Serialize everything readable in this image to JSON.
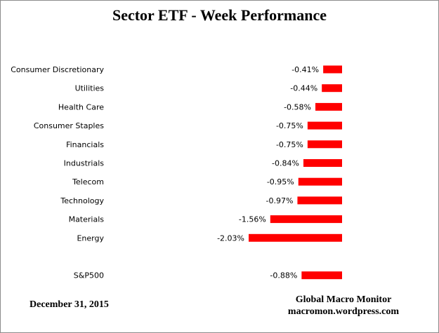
{
  "chart_data": {
    "type": "bar",
    "orientation": "horizontal",
    "title": "Sector ETF - Week Performance",
    "categories": [
      "Consumer Discretionary",
      "Utilities",
      "Health Care",
      "Consumer Staples",
      "Financials",
      "Industrials",
      "Telecom",
      "Technology",
      "Materials",
      "Energy",
      "",
      "S&P500"
    ],
    "values": [
      -0.41,
      -0.44,
      -0.58,
      -0.75,
      -0.75,
      -0.84,
      -0.95,
      -0.97,
      -1.56,
      -2.03,
      null,
      -0.88
    ],
    "value_labels": [
      "-0.41%",
      "-0.44%",
      "-0.58%",
      "-0.75%",
      "-0.75%",
      "-0.84%",
      "-0.95%",
      "-0.97%",
      "-1.56%",
      "-2.03%",
      "",
      "-0.88%"
    ],
    "bar_color": "#ff0000",
    "xlim": [
      -2.03,
      0
    ],
    "grid": false,
    "legend": "none"
  },
  "footer": {
    "date": "December 31,  2015",
    "source_name": "Global Macro Monitor",
    "source_url": "macromon.wordpress.com"
  }
}
